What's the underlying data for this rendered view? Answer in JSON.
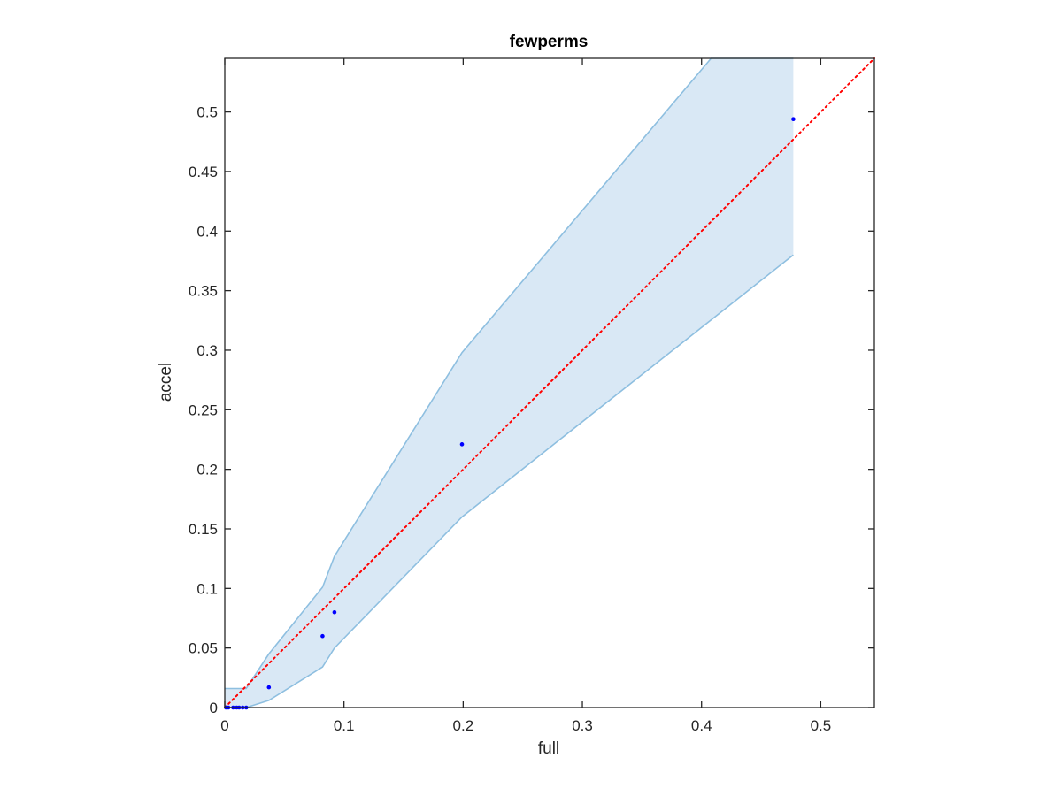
{
  "chart_data": {
    "type": "scatter",
    "title": "fewperms",
    "xlabel": "full",
    "ylabel": "accel",
    "xlim": [
      0,
      0.545
    ],
    "ylim": [
      0,
      0.545
    ],
    "xticks": [
      0,
      0.1,
      0.2,
      0.3,
      0.4,
      0.5
    ],
    "xtick_labels": [
      "0",
      "0.1",
      "0.2",
      "0.3",
      "0.4",
      "0.5"
    ],
    "yticks": [
      0,
      0.05,
      0.1,
      0.15,
      0.2,
      0.25,
      0.3,
      0.35,
      0.4,
      0.45,
      0.5
    ],
    "ytick_labels": [
      "0",
      "0.05",
      "0.1",
      "0.15",
      "0.2",
      "0.25",
      "0.3",
      "0.35",
      "0.4",
      "0.45",
      "0.5"
    ],
    "grid": false,
    "legend": "none",
    "points": {
      "x": [
        0.001,
        0.003,
        0.007,
        0.01,
        0.012,
        0.015,
        0.018,
        0.037,
        0.082,
        0.092,
        0.199,
        0.477
      ],
      "y": [
        0,
        0,
        0,
        0,
        0,
        0,
        0,
        0.017,
        0.06,
        0.08,
        0.221,
        0.494
      ],
      "color": "#0000ff"
    },
    "reference_line": {
      "description": "y = x",
      "x": [
        0,
        0.545
      ],
      "y": [
        0,
        0.545
      ],
      "color": "#ff0000",
      "style": "dotted"
    },
    "band": {
      "upper": {
        "x": [
          0,
          0.018,
          0.037,
          0.082,
          0.092,
          0.199,
          0.408,
          0.477
        ],
        "y": [
          0.016,
          0.016,
          0.045,
          0.101,
          0.127,
          0.298,
          0.545,
          0.545
        ]
      },
      "lower": {
        "x": [
          0,
          0.018,
          0.037,
          0.082,
          0.092,
          0.199,
          0.477
        ],
        "y": [
          0,
          0,
          0.006,
          0.034,
          0.05,
          0.16,
          0.38
        ]
      },
      "fill_color": "#d9e8f5",
      "edge_color": "#8ebfe0"
    },
    "axis_color": "#262626"
  }
}
